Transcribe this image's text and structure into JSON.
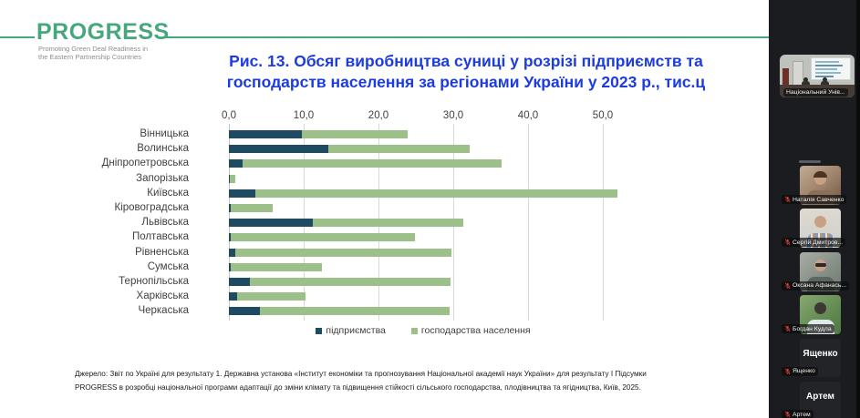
{
  "slide": {
    "logo": {
      "name": "PROGRESS",
      "tagline": [
        "Promoting Green Deal Readiness in",
        "the Eastern Partnership Countries"
      ],
      "accent_color": "#45a87c"
    },
    "title_lines": [
      "Рис. 13. Обсяг виробництва суниці у розрізі підприємств та",
      "господарств населення за регіонами України у 2023 р., тис.ц"
    ],
    "title_color": "#1c3be0",
    "source_lines": [
      "Джерело: Звіт по Україні для результату 1.  Державна установа «Інститут економіки та прогнозування Національної академії наук України» для результату І Підсумки",
      "PROGRESS в розробці національної програми адаптації до зміни клімату та підвищення стійкості сільського господарства, плодівництва та ягідництва, Київ, 2025."
    ]
  },
  "chart_data": {
    "type": "bar",
    "orientation": "horizontal",
    "stacked": true,
    "grid": true,
    "legend_position": "bottom",
    "categories": [
      "Вінницька",
      "Волинська",
      "Дніпропетровська",
      "Запорізька",
      "Київська",
      "Кіровоградська",
      "Львівська",
      "Полтавська",
      "Рівненська",
      "Сумська",
      "Тернопільська",
      "Харківська",
      "Черкаська"
    ],
    "series": [
      {
        "name": "підприємства",
        "color": "#1e4b61",
        "values": [
          9.8,
          13.3,
          1.8,
          0.1,
          3.5,
          0.3,
          11.2,
          0.3,
          0.8,
          0.3,
          2.8,
          1.1,
          4.2
        ]
      },
      {
        "name": "господарства населення",
        "color": "#9dc08a",
        "values": [
          14.1,
          18.9,
          34.7,
          0.7,
          48.4,
          5.5,
          20.1,
          24.6,
          29.0,
          12.1,
          26.8,
          9.1,
          25.3
        ]
      }
    ],
    "x_ticks": {
      "labels": [
        "0,0",
        "10,0",
        "20,0",
        "30,0",
        "40,0",
        "50,0"
      ],
      "values": [
        0,
        10,
        20,
        30,
        40,
        50
      ]
    },
    "xlim": [
      0,
      52
    ]
  },
  "sidebar": {
    "participants": [
      {
        "kind": "room",
        "style": "classroom",
        "label": "Національний Унів...",
        "muted": false
      },
      {
        "kind": "video",
        "style": "indoor-woman",
        "label": "Наталія Савченко",
        "muted": true
      },
      {
        "kind": "video",
        "style": "plaid-man",
        "label": "Сергій Дмитров...",
        "muted": true
      },
      {
        "kind": "video",
        "style": "sunglasses-woman",
        "label": "Оксана Афанась...",
        "muted": true
      },
      {
        "kind": "video",
        "style": "outdoor-person",
        "label": "Богдан Кудла",
        "muted": true
      },
      {
        "kind": "audio",
        "display_name": "Ященко",
        "label": "Ященко",
        "muted": true
      },
      {
        "kind": "audio",
        "display_name": "Артем",
        "label": "Артем",
        "muted": true
      }
    ]
  }
}
